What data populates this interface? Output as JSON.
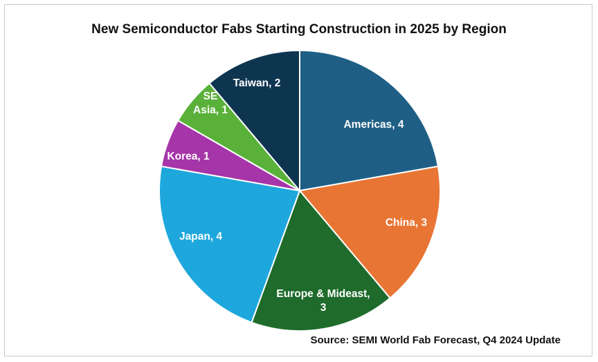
{
  "chart_data": {
    "type": "pie",
    "title": "New Semiconductor Fabs Starting Construction in 2025 by Region",
    "source": "Source: SEMI World Fab Forecast, Q4 2024 Update",
    "slices": [
      {
        "label": "Americas",
        "value": 4,
        "text": [
          "Americas, 4"
        ],
        "color": "#1f5f86"
      },
      {
        "label": "China",
        "value": 3,
        "text": [
          "China, 3"
        ],
        "color": "#e87533"
      },
      {
        "label": "Europe & Mideast",
        "value": 3,
        "text": [
          "Europe & Mideast,",
          "3"
        ],
        "color": "#1e6b2b"
      },
      {
        "label": "Japan",
        "value": 4,
        "text": [
          "Japan, 4"
        ],
        "color": "#1ea7dd"
      },
      {
        "label": "Korea",
        "value": 1,
        "text": [
          "Korea, 1"
        ],
        "color": "#a535a8"
      },
      {
        "label": "SE Asia",
        "value": 1,
        "text": [
          "SE",
          "Asia, 1"
        ],
        "color": "#5ab13a"
      },
      {
        "label": "Taiwan",
        "value": 2,
        "text": [
          "Taiwan, 2"
        ],
        "color": "#0e3550"
      }
    ],
    "start": "12 o'clock",
    "direction": "clockwise",
    "legend": "none",
    "data_labels": "inside"
  }
}
